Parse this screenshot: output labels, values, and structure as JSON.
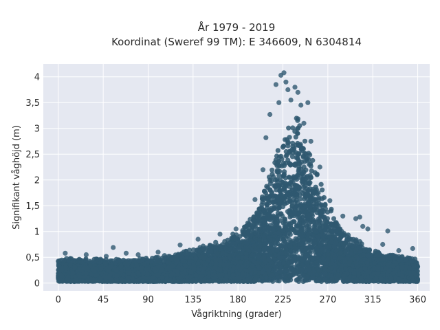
{
  "chart_data": {
    "type": "scatter",
    "title_line1": "År 1979 - 2019",
    "title_line2": "Koordinat (Sweref 99 TM): E 346609, N 6304814",
    "xlabel": "Vågriktning (grader)",
    "ylabel": "Signifikant våghöjd (m)",
    "xlim": [
      -15,
      372
    ],
    "ylim": [
      -0.15,
      4.25
    ],
    "x_ticks": [
      0,
      45,
      90,
      135,
      180,
      225,
      270,
      315,
      360
    ],
    "x_tick_labels": [
      "0",
      "45",
      "90",
      "135",
      "180",
      "225",
      "270",
      "315",
      "360"
    ],
    "y_ticks": [
      0,
      0.5,
      1,
      1.5,
      2,
      2.5,
      3,
      3.5,
      4
    ],
    "y_tick_labels": [
      "0",
      "0,5",
      "1",
      "1,5",
      "2",
      "2,5",
      "3",
      "3,5",
      "4"
    ],
    "grid": true,
    "legend": "none",
    "colors": {
      "marker": "#2f5870",
      "plot_bg": "#e5e8f1",
      "grid": "#ffffff"
    },
    "envelope": {
      "x": [
        0,
        10,
        20,
        30,
        45,
        60,
        75,
        90,
        105,
        120,
        135,
        150,
        165,
        180,
        190,
        200,
        210,
        220,
        225,
        230,
        235,
        240,
        245,
        250,
        255,
        260,
        270,
        280,
        290,
        300,
        315,
        330,
        345,
        360
      ],
      "y_max": [
        0.45,
        0.47,
        0.45,
        0.45,
        0.45,
        0.45,
        0.45,
        0.47,
        0.5,
        0.55,
        0.65,
        0.75,
        0.85,
        1.0,
        1.2,
        1.55,
        2.05,
        2.6,
        2.8,
        3.0,
        3.3,
        3.35,
        3.2,
        2.9,
        2.5,
        2.1,
        1.55,
        1.2,
        0.95,
        0.8,
        0.65,
        0.55,
        0.5,
        0.45
      ]
    },
    "outliers": [
      {
        "x": 7,
        "y": 0.58
      },
      {
        "x": 28,
        "y": 0.55
      },
      {
        "x": 48,
        "y": 0.52
      },
      {
        "x": 55,
        "y": 0.69
      },
      {
        "x": 68,
        "y": 0.58
      },
      {
        "x": 80,
        "y": 0.55
      },
      {
        "x": 100,
        "y": 0.6
      },
      {
        "x": 122,
        "y": 0.74
      },
      {
        "x": 140,
        "y": 0.85
      },
      {
        "x": 162,
        "y": 0.95
      },
      {
        "x": 178,
        "y": 1.05
      },
      {
        "x": 197,
        "y": 1.62
      },
      {
        "x": 205,
        "y": 2.2
      },
      {
        "x": 208,
        "y": 2.82
      },
      {
        "x": 212,
        "y": 3.27
      },
      {
        "x": 218,
        "y": 3.85
      },
      {
        "x": 221,
        "y": 3.5
      },
      {
        "x": 223,
        "y": 4.03
      },
      {
        "x": 226,
        "y": 4.08
      },
      {
        "x": 228,
        "y": 3.9
      },
      {
        "x": 230,
        "y": 3.75
      },
      {
        "x": 233,
        "y": 3.55
      },
      {
        "x": 237,
        "y": 3.8
      },
      {
        "x": 240,
        "y": 3.7
      },
      {
        "x": 243,
        "y": 3.45
      },
      {
        "x": 246,
        "y": 3.1
      },
      {
        "x": 250,
        "y": 3.5
      },
      {
        "x": 253,
        "y": 2.75
      },
      {
        "x": 262,
        "y": 2.25
      },
      {
        "x": 272,
        "y": 1.6
      },
      {
        "x": 285,
        "y": 1.3
      },
      {
        "x": 298,
        "y": 1.25
      },
      {
        "x": 302,
        "y": 1.28
      },
      {
        "x": 305,
        "y": 1.1
      },
      {
        "x": 310,
        "y": 1.05
      },
      {
        "x": 325,
        "y": 0.75
      },
      {
        "x": 330,
        "y": 1.01
      },
      {
        "x": 341,
        "y": 0.63
      },
      {
        "x": 355,
        "y": 0.67
      }
    ]
  }
}
